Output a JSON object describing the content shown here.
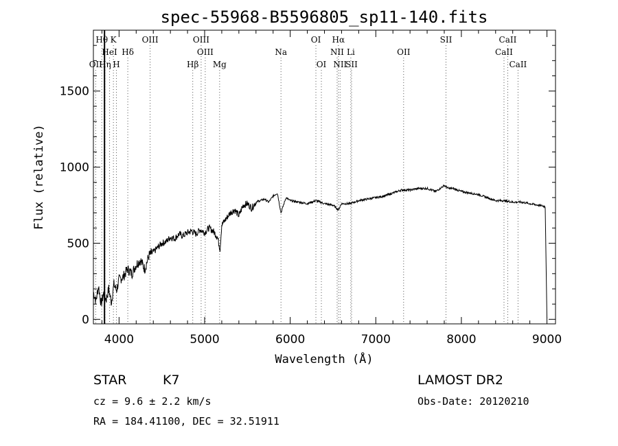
{
  "chart_data": {
    "type": "line",
    "title": "spec-55968-B5596805_sp11-140.fits",
    "xlabel": "Wavelength (Å)",
    "ylabel": "Flux (relative)",
    "xlim": [
      3700,
      9100
    ],
    "ylim": [
      -30,
      1900
    ],
    "xticks": [
      4000,
      5000,
      6000,
      7000,
      8000,
      9000
    ],
    "yticks": [
      0,
      500,
      1000,
      1500
    ],
    "grid": false,
    "series": [
      {
        "x": [
          3700,
          3730,
          3760,
          3790,
          3820,
          3850,
          3880,
          3910,
          3940,
          3970,
          4000,
          4050,
          4100,
          4150,
          4200,
          4250,
          4300,
          4350,
          4400,
          4450,
          4500,
          4550,
          4600,
          4650,
          4700,
          4750,
          4800,
          4850,
          4900,
          4950,
          5000,
          5050,
          5100,
          5150,
          5180,
          5200,
          5250,
          5300,
          5350,
          5400,
          5450,
          5500,
          5550,
          5600,
          5650,
          5700,
          5750,
          5800,
          5850,
          5892,
          5950,
          6000,
          6100,
          6200,
          6300,
          6400,
          6500,
          6563,
          6600,
          6700,
          6800,
          6900,
          7000,
          7100,
          7200,
          7300,
          7400,
          7500,
          7600,
          7700,
          7800,
          7850,
          7900,
          8000,
          8100,
          8200,
          8300,
          8400,
          8500,
          8600,
          8700,
          8800,
          8900,
          8950,
          8980,
          9000
        ],
        "y": [
          180,
          120,
          220,
          100,
          170,
          130,
          200,
          110,
          230,
          190,
          260,
          280,
          330,
          300,
          360,
          390,
          330,
          420,
          440,
          470,
          500,
          510,
          540,
          530,
          560,
          550,
          570,
          580,
          560,
          590,
          570,
          600,
          580,
          540,
          460,
          620,
          660,
          700,
          720,
          680,
          750,
          760,
          730,
          770,
          780,
          790,
          770,
          810,
          830,
          700,
          800,
          780,
          770,
          760,
          780,
          760,
          750,
          720,
          760,
          760,
          780,
          790,
          800,
          810,
          830,
          850,
          850,
          860,
          860,
          840,
          880,
          860,
          860,
          840,
          830,
          820,
          800,
          780,
          780,
          770,
          770,
          760,
          750,
          745,
          740,
          10
        ]
      }
    ],
    "vertical_marker_x": 3830,
    "lines": [
      {
        "label": "Hθ",
        "x": 3798,
        "row": 1
      },
      {
        "label": "K",
        "x": 3934,
        "row": 1
      },
      {
        "label": "OIII",
        "x": 4363,
        "row": 1
      },
      {
        "label": "OIII",
        "x": 4959,
        "row": 1
      },
      {
        "label": "OI",
        "x": 6300,
        "row": 1
      },
      {
        "label": "Hα",
        "x": 6563,
        "row": 1
      },
      {
        "label": "SII",
        "x": 7820,
        "row": 1
      },
      {
        "label": "CaII",
        "x": 8542,
        "row": 1
      },
      {
        "label": "HeI",
        "x": 3889,
        "row": 2
      },
      {
        "label": "Hδ",
        "x": 4102,
        "row": 2
      },
      {
        "label": "OIII",
        "x": 5007,
        "row": 2
      },
      {
        "label": "Na",
        "x": 5892,
        "row": 2
      },
      {
        "label": "NII",
        "x": 6548,
        "row": 2
      },
      {
        "label": "Li",
        "x": 6708,
        "row": 2
      },
      {
        "label": "OII",
        "x": 7325,
        "row": 2
      },
      {
        "label": "CaII",
        "x": 8498,
        "row": 2
      },
      {
        "label": "OII",
        "x": 3727,
        "row": 3
      },
      {
        "label": "Hη",
        "x": 3835,
        "row": 3
      },
      {
        "label": "H",
        "x": 3969,
        "row": 3
      },
      {
        "label": "Hβ",
        "x": 4861,
        "row": 3
      },
      {
        "label": "Mg",
        "x": 5175,
        "row": 3
      },
      {
        "label": "OI",
        "x": 6364,
        "row": 3
      },
      {
        "label": "NII",
        "x": 6583,
        "row": 3
      },
      {
        "label": "SII",
        "x": 6717,
        "row": 3
      },
      {
        "label": "CaII",
        "x": 8662,
        "row": 3
      }
    ]
  },
  "info": {
    "object_type": "STAR",
    "subclass": "K7",
    "cz": "cz = 9.6 ± 2.2 km/s",
    "coords": "RA = 184.41100, DEC =  32.51911",
    "survey": "LAMOST DR2",
    "obs_date": "Obs-Date: 20120210"
  }
}
